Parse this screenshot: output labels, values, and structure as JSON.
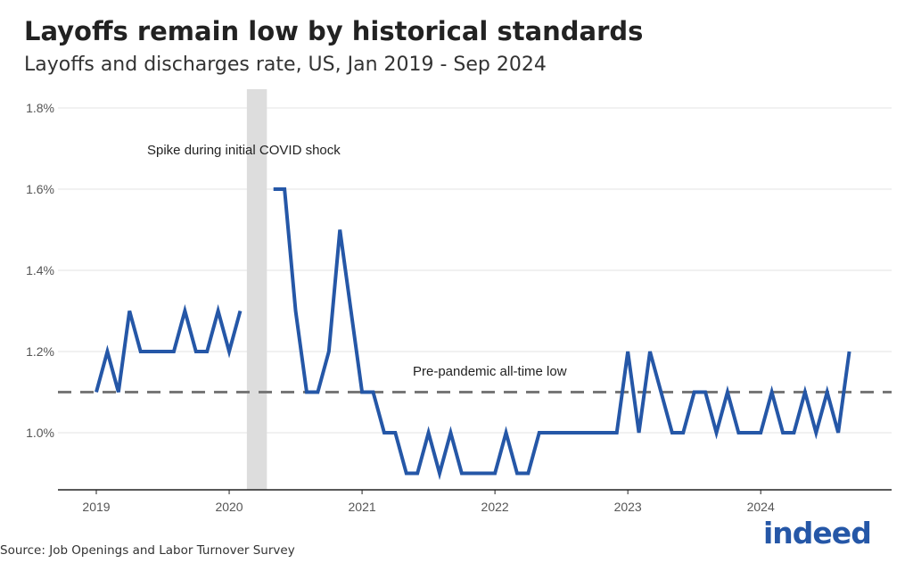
{
  "chart_data": {
    "type": "line",
    "title": "Layoffs remain low by historical standards",
    "subtitle": "Layoffs and discharges rate, US, Jan 2019 - Sep 2024",
    "xlabel": "",
    "ylabel": "",
    "ylim": [
      0.86,
      1.85
    ],
    "y_ticks": [
      1.0,
      1.2,
      1.4,
      1.6,
      1.8
    ],
    "y_tick_labels": [
      "1.0%",
      "1.2%",
      "1.4%",
      "1.6%",
      "1.8%"
    ],
    "x_tick_labels": [
      "2019",
      "2020",
      "2021",
      "2022",
      "2023",
      "2024"
    ],
    "grid": "horizontal",
    "series": [
      {
        "name": "Layoffs and discharges rate",
        "color": "#2557a7",
        "start": "2019-01",
        "values": [
          1.1,
          1.2,
          1.1,
          1.3,
          1.2,
          1.2,
          1.2,
          1.2,
          1.3,
          1.2,
          1.2,
          1.3,
          1.2,
          1.3,
          null,
          null,
          1.6,
          1.6,
          1.3,
          1.1,
          1.1,
          1.2,
          1.5,
          1.3,
          1.1,
          1.1,
          1.0,
          1.0,
          0.9,
          0.9,
          1.0,
          0.9,
          1.0,
          0.9,
          0.9,
          0.9,
          0.9,
          1.0,
          0.9,
          0.9,
          1.0,
          1.0,
          1.0,
          1.0,
          1.0,
          1.0,
          1.0,
          1.0,
          1.2,
          1.0,
          1.2,
          1.1,
          1.0,
          1.0,
          1.1,
          1.1,
          1.0,
          1.1,
          1.0,
          1.0,
          1.0,
          1.1,
          1.0,
          1.0,
          1.1,
          1.0,
          1.1,
          1.0,
          1.2
        ]
      }
    ],
    "reference_line": {
      "value": 1.1,
      "label": "Pre-pandemic all-time low",
      "color": "#777777"
    },
    "shaded_band": {
      "from": "2020-03",
      "to": "2020-04",
      "label": "Spike during initial COVID shock",
      "color": "#dddddd"
    }
  },
  "source": "Source: Job Openings and Labor Turnover Survey",
  "logo": "indeed"
}
